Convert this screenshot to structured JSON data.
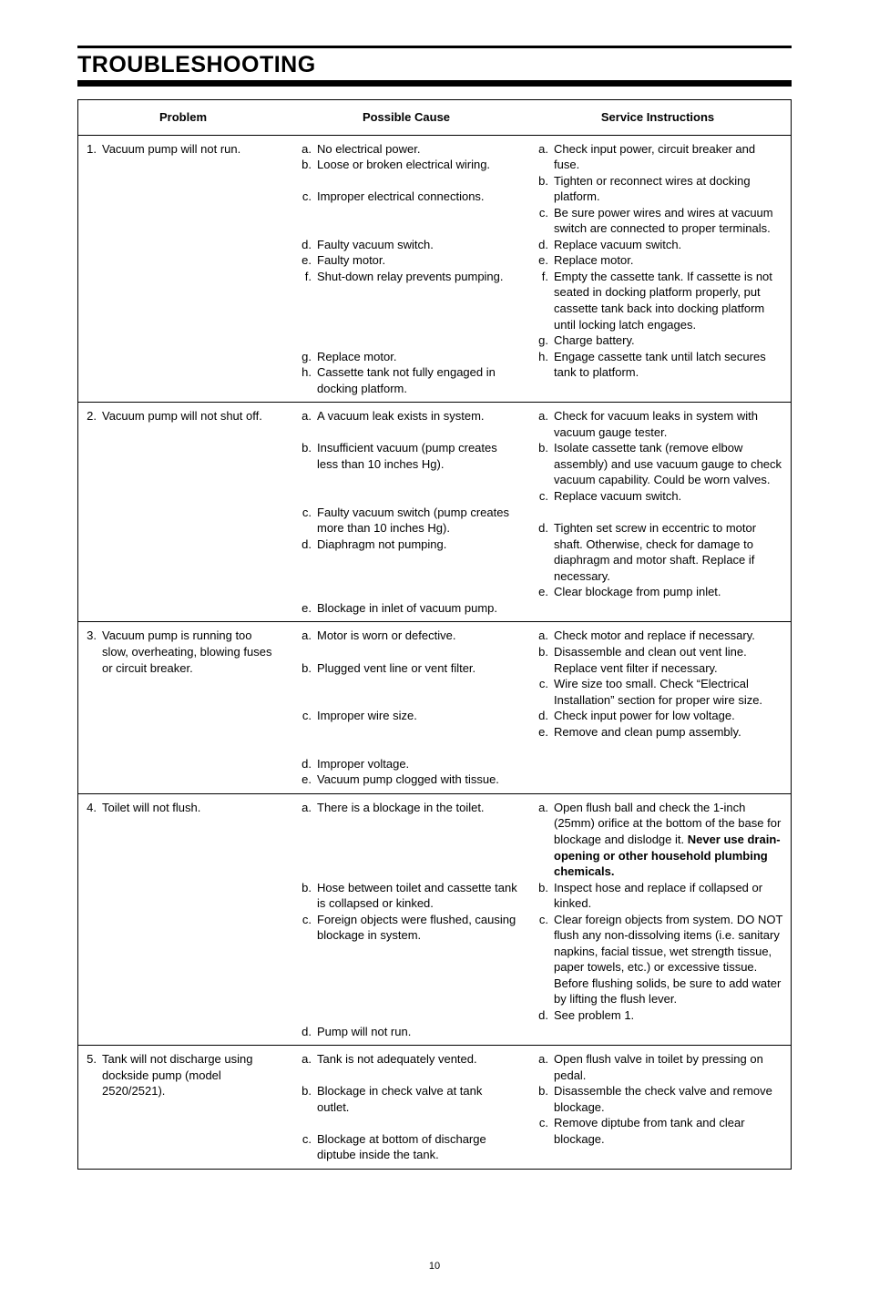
{
  "title": "TROUBLESHOOTING",
  "headers": {
    "problem": "Problem",
    "cause": "Possible Cause",
    "service": "Service Instructions"
  },
  "page_number": "10",
  "rows": [
    {
      "problem": {
        "n": "1.",
        "t": "Vacuum pump will not run."
      },
      "causes": [
        {
          "l": "a.",
          "t": "No electrical power."
        },
        {
          "l": "b.",
          "t": "Loose or broken electrical wiring."
        },
        {
          "l": "",
          "t": " "
        },
        {
          "l": "c.",
          "t": "Improper electrical connections."
        },
        {
          "l": "",
          "t": " "
        },
        {
          "l": "",
          "t": " "
        },
        {
          "l": "d.",
          "t": "Faulty vacuum switch."
        },
        {
          "l": "e.",
          "t": "Faulty motor."
        },
        {
          "l": "f.",
          "t": "Shut-down relay prevents pumping."
        },
        {
          "l": "",
          "t": " "
        },
        {
          "l": "",
          "t": " "
        },
        {
          "l": "",
          "t": " "
        },
        {
          "l": "",
          "t": " "
        },
        {
          "l": "g.",
          "t": "Replace motor."
        },
        {
          "l": "h.",
          "t": "Cassette tank not fully engaged in docking platform."
        }
      ],
      "services": [
        {
          "l": "a.",
          "t": "Check input power, circuit breaker and fuse."
        },
        {
          "l": "b.",
          "t": "Tighten or reconnect wires at docking platform."
        },
        {
          "l": "c.",
          "t": "Be sure power wires and wires at vacuum switch are connected to proper terminals."
        },
        {
          "l": "d.",
          "t": "Replace vacuum switch."
        },
        {
          "l": "e.",
          "t": "Replace motor."
        },
        {
          "l": "f.",
          "t": "Empty the cassette tank. If cassette is not seated in docking platform properly, put cassette tank back into docking platform until locking latch engages."
        },
        {
          "l": "g.",
          "t": "Charge battery."
        },
        {
          "l": "h.",
          "t": "Engage cassette tank until latch secures tank to platform."
        }
      ]
    },
    {
      "problem": {
        "n": "2.",
        "t": "Vacuum pump will not shut off."
      },
      "causes": [
        {
          "l": "a.",
          "t": "A vacuum leak exists in system."
        },
        {
          "l": "",
          "t": " "
        },
        {
          "l": "b.",
          "t": "Insufficient vacuum (pump creates less than 10 inches Hg)."
        },
        {
          "l": "",
          "t": " "
        },
        {
          "l": "",
          "t": " "
        },
        {
          "l": "c.",
          "t": "Faulty vacuum switch (pump creates more than 10 inches Hg)."
        },
        {
          "l": "d.",
          "t": "Diaphragm not pumping."
        },
        {
          "l": "",
          "t": " "
        },
        {
          "l": "",
          "t": " "
        },
        {
          "l": "",
          "t": " "
        },
        {
          "l": "e.",
          "t": "Blockage in inlet of vacuum pump."
        }
      ],
      "services": [
        {
          "l": "a.",
          "t": "Check for vacuum leaks in system with vacuum gauge tester."
        },
        {
          "l": "b.",
          "t": "Isolate cassette tank (remove elbow assembly) and use vacuum gauge to check vacuum capability. Could be worn valves."
        },
        {
          "l": "c.",
          "t": "Replace vacuum switch."
        },
        {
          "l": "",
          "t": " "
        },
        {
          "l": "d.",
          "t": "Tighten set screw in eccentric to motor shaft. Otherwise, check for damage to diaphragm and motor shaft. Replace if necessary."
        },
        {
          "l": "e.",
          "t": "Clear blockage from pump inlet."
        }
      ]
    },
    {
      "problem": {
        "n": "3.",
        "t": "Vacuum pump is running too slow, overheating, blowing fuses or circuit breaker."
      },
      "causes": [
        {
          "l": "a.",
          "t": "Motor is worn or defective."
        },
        {
          "l": "",
          "t": " "
        },
        {
          "l": "b.",
          "t": "Plugged vent line or vent filter."
        },
        {
          "l": "",
          "t": " "
        },
        {
          "l": "",
          "t": " "
        },
        {
          "l": "c.",
          "t": "Improper wire size."
        },
        {
          "l": "",
          "t": " "
        },
        {
          "l": "",
          "t": " "
        },
        {
          "l": "d.",
          "t": "Improper voltage."
        },
        {
          "l": "e.",
          "t": "Vacuum pump clogged with tissue."
        }
      ],
      "services": [
        {
          "l": "a.",
          "t": "Check motor and replace if necessary."
        },
        {
          "l": "b.",
          "t": "Disassemble and clean out vent line. Replace vent filter if necessary."
        },
        {
          "l": "c.",
          "t": "Wire size too small. Check “Electrical Installation” section for proper wire size."
        },
        {
          "l": "d.",
          "t": "Check input power for low voltage."
        },
        {
          "l": "e.",
          "t": "Remove and clean pump assembly."
        }
      ]
    },
    {
      "problem": {
        "n": "4.",
        "t": "Toilet will not flush."
      },
      "causes": [
        {
          "l": "a.",
          "t": "There is a blockage in the toilet."
        },
        {
          "l": "",
          "t": " "
        },
        {
          "l": "",
          "t": " "
        },
        {
          "l": "",
          "t": " "
        },
        {
          "l": "",
          "t": " "
        },
        {
          "l": "b.",
          "t": "Hose between toilet and cassette tank is collapsed or kinked."
        },
        {
          "l": "c.",
          "t": "Foreign objects were flushed, causing blockage in system."
        },
        {
          "l": "",
          "t": " "
        },
        {
          "l": "",
          "t": " "
        },
        {
          "l": "",
          "t": " "
        },
        {
          "l": "",
          "t": " "
        },
        {
          "l": "",
          "t": " "
        },
        {
          "l": "d.",
          "t": "Pump will not run."
        }
      ],
      "services": [
        {
          "l": "a.",
          "t": "Open flush ball and check the 1-inch (25mm) orifice at the bottom of the base for blockage and dislodge it.",
          "bold_suffix": "Never use drain-opening or other household plumbing chemicals."
        },
        {
          "l": "b.",
          "t": "Inspect hose and replace if collapsed or kinked."
        },
        {
          "l": "c.",
          "t": "Clear foreign objects from system. DO NOT flush any non-dissolving items (i.e. sanitary napkins, facial tissue, wet strength tissue, paper towels, etc.) or excessive tissue. Before flushing solids, be sure to add water by lifting the flush lever."
        },
        {
          "l": "d.",
          "t": "See problem 1."
        }
      ]
    },
    {
      "problem": {
        "n": "5.",
        "t": "Tank will not discharge using dockside pump (model 2520/2521)."
      },
      "causes": [
        {
          "l": "a.",
          "t": "Tank is not adequately vented."
        },
        {
          "l": "",
          "t": " "
        },
        {
          "l": "b.",
          "t": "Blockage in check valve at tank outlet."
        },
        {
          "l": "",
          "t": " "
        },
        {
          "l": "c.",
          "t": "Blockage at bottom of discharge diptube inside the tank."
        }
      ],
      "services": [
        {
          "l": "a.",
          "t": "Open flush valve in toilet by pressing on pedal."
        },
        {
          "l": "b.",
          "t": "Disassemble the check valve and remove blockage."
        },
        {
          "l": "c.",
          "t": "Remove diptube from tank and clear blockage."
        }
      ]
    }
  ]
}
